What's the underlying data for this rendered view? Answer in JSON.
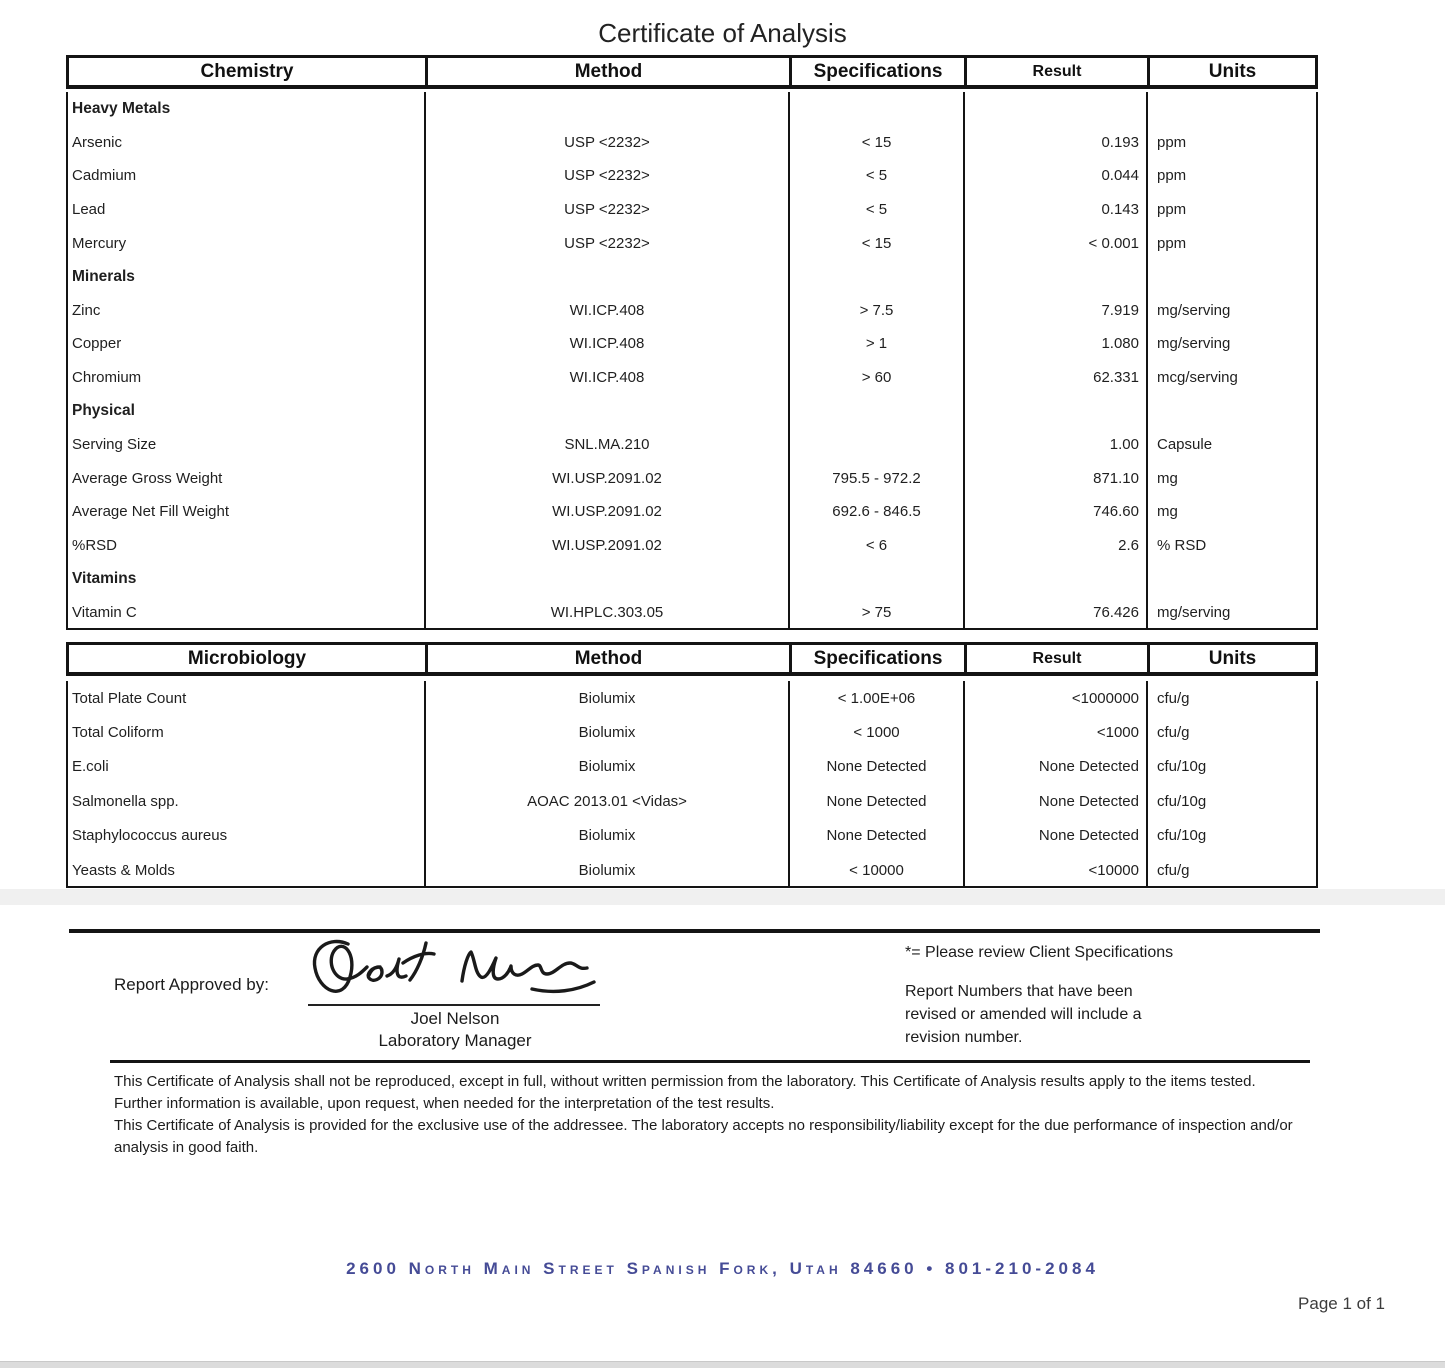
{
  "title": "Certificate of Analysis",
  "chemistry_table": {
    "headers": [
      "Chemistry",
      "Method",
      "Specifications",
      "Result",
      "Units"
    ],
    "rows": [
      {
        "section": "Heavy Metals"
      },
      {
        "analyte": "Arsenic",
        "method": "USP <2232>",
        "spec": "< 15",
        "result": "0.193",
        "units": "ppm"
      },
      {
        "analyte": "Cadmium",
        "method": "USP <2232>",
        "spec": "< 5",
        "result": "0.044",
        "units": "ppm"
      },
      {
        "analyte": "Lead",
        "method": "USP <2232>",
        "spec": "< 5",
        "result": "0.143",
        "units": "ppm"
      },
      {
        "analyte": "Mercury",
        "method": "USP <2232>",
        "spec": "< 15",
        "result": "< 0.001",
        "units": "ppm"
      },
      {
        "section": "Minerals"
      },
      {
        "analyte": "Zinc",
        "method": "WI.ICP.408",
        "spec": "> 7.5",
        "result": "7.919",
        "units": "mg/serving"
      },
      {
        "analyte": "Copper",
        "method": "WI.ICP.408",
        "spec": "> 1",
        "result": "1.080",
        "units": "mg/serving"
      },
      {
        "analyte": "Chromium",
        "method": "WI.ICP.408",
        "spec": "> 60",
        "result": "62.331",
        "units": "mcg/serving"
      },
      {
        "section": "Physical"
      },
      {
        "analyte": "Serving Size",
        "method": "SNL.MA.210",
        "spec": "",
        "result": "1.00",
        "units": "Capsule"
      },
      {
        "analyte": "Average Gross Weight",
        "method": "WI.USP.2091.02",
        "spec": "795.5 - 972.2",
        "result": "871.10",
        "units": "mg"
      },
      {
        "analyte": "Average Net Fill Weight",
        "method": "WI.USP.2091.02",
        "spec": "692.6 - 846.5",
        "result": "746.60",
        "units": "mg"
      },
      {
        "analyte": "%RSD",
        "method": "WI.USP.2091.02",
        "spec": "< 6",
        "result": "2.6",
        "units": "% RSD"
      },
      {
        "section": "Vitamins"
      },
      {
        "analyte": "Vitamin C",
        "method": "WI.HPLC.303.05",
        "spec": "> 75",
        "result": "76.426",
        "units": "mg/serving"
      }
    ]
  },
  "microbiology_table": {
    "headers": [
      "Microbiology",
      "Method",
      "Specifications",
      "Result",
      "Units"
    ],
    "rows": [
      {
        "analyte": "Total Plate Count",
        "method": "Biolumix",
        "spec": "< 1.00E+06",
        "result": "<1000000",
        "units": "cfu/g"
      },
      {
        "analyte": "Total Coliform",
        "method": "Biolumix",
        "spec": "< 1000",
        "result": "<1000",
        "units": "cfu/g"
      },
      {
        "analyte": "E.coli",
        "method": "Biolumix",
        "spec": "None Detected",
        "result": "None Detected",
        "units": "cfu/10g"
      },
      {
        "analyte": "Salmonella spp.",
        "method": "AOAC 2013.01 <Vidas>",
        "spec": "None Detected",
        "result": "None Detected",
        "units": "cfu/10g"
      },
      {
        "analyte": "Staphylococcus aureus",
        "method": "Biolumix",
        "spec": "None Detected",
        "result": "None Detected",
        "units": "cfu/10g"
      },
      {
        "analyte": "Yeasts & Molds",
        "method": "Biolumix",
        "spec": "< 10000",
        "result": "<10000",
        "units": "cfu/g"
      }
    ]
  },
  "approval": {
    "label": "Report Approved by:",
    "signer_name": "Joel Nelson",
    "signer_title": "Laboratory Manager"
  },
  "notes": {
    "asterisk_note": "*= Please review Client Specifications",
    "revision_note": "Report Numbers that have been revised or amended will include a revision number."
  },
  "disclaimer": {
    "paragraph1": "This Certificate of Analysis shall not be reproduced, except in full, without written permission from the laboratory. This Certificate of Analysis results apply to the items tested. Further information is available, upon request, when needed for the interpretation of the test results.",
    "paragraph2": "This Certificate of Analysis is provided for the exclusive use of the addressee. The laboratory accepts no responsibility/liability except for the due performance of inspection and/or analysis in good faith."
  },
  "footer": {
    "address": "2600 North Main Street  Spanish Fork, Utah  84660  •  801-210-2084",
    "page_label": "Page 1 of 1"
  },
  "colors": {
    "footer_blue": "#454b96",
    "border_black": "#141414"
  }
}
